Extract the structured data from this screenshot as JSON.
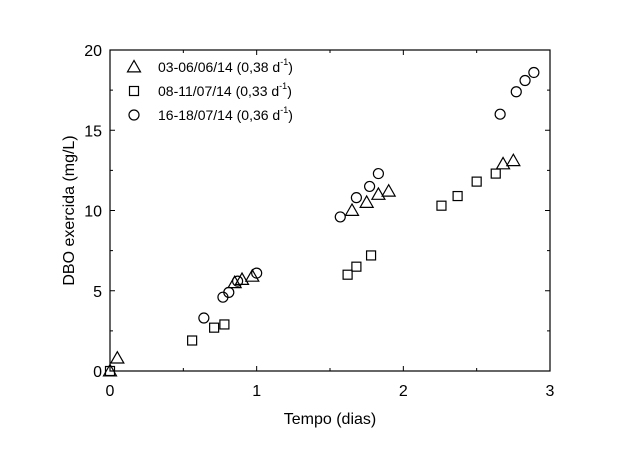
{
  "chart_data": {
    "type": "scatter",
    "xlabel": "Tempo (dias)",
    "ylabel": "DBO exercida (mg/L)",
    "xlim": [
      0,
      3
    ],
    "ylim": [
      0,
      20
    ],
    "x_ticks": [
      "0",
      "1",
      "2",
      "3"
    ],
    "y_ticks": [
      "0",
      "5",
      "10",
      "15",
      "20"
    ],
    "grid": false,
    "legend_position": "top-left",
    "series": [
      {
        "name": "03-06/06/14 (0,38 d",
        "name_sup": "-1",
        "name_suffix": ")",
        "marker": "triangle",
        "points": [
          [
            0.0,
            0.0
          ],
          [
            0.05,
            0.8
          ],
          [
            0.85,
            5.5
          ],
          [
            0.9,
            5.7
          ],
          [
            0.97,
            5.9
          ],
          [
            1.65,
            10.0
          ],
          [
            1.75,
            10.5
          ],
          [
            1.83,
            11.0
          ],
          [
            1.9,
            11.2
          ],
          [
            2.68,
            12.9
          ],
          [
            2.75,
            13.1
          ]
        ]
      },
      {
        "name": "08-11/07/14 (0,33 d",
        "name_sup": "-1",
        "name_suffix": ")",
        "marker": "square",
        "points": [
          [
            0.0,
            0.0
          ],
          [
            0.56,
            1.9
          ],
          [
            0.71,
            2.7
          ],
          [
            0.78,
            2.9
          ],
          [
            1.62,
            6.0
          ],
          [
            1.68,
            6.5
          ],
          [
            1.78,
            7.2
          ],
          [
            2.26,
            10.3
          ],
          [
            2.37,
            10.9
          ],
          [
            2.5,
            11.8
          ],
          [
            2.63,
            12.3
          ]
        ]
      },
      {
        "name": "16-18/07/14 (0,36 d",
        "name_sup": "-1",
        "name_suffix": ")",
        "marker": "circle",
        "points": [
          [
            0.64,
            3.3
          ],
          [
            0.77,
            4.6
          ],
          [
            0.81,
            4.9
          ],
          [
            0.87,
            5.6
          ],
          [
            1.0,
            6.1
          ],
          [
            1.57,
            9.6
          ],
          [
            1.68,
            10.8
          ],
          [
            1.77,
            11.5
          ],
          [
            1.83,
            12.3
          ],
          [
            2.66,
            16.0
          ],
          [
            2.77,
            17.4
          ],
          [
            2.83,
            18.1
          ],
          [
            2.89,
            18.6
          ]
        ]
      }
    ]
  }
}
